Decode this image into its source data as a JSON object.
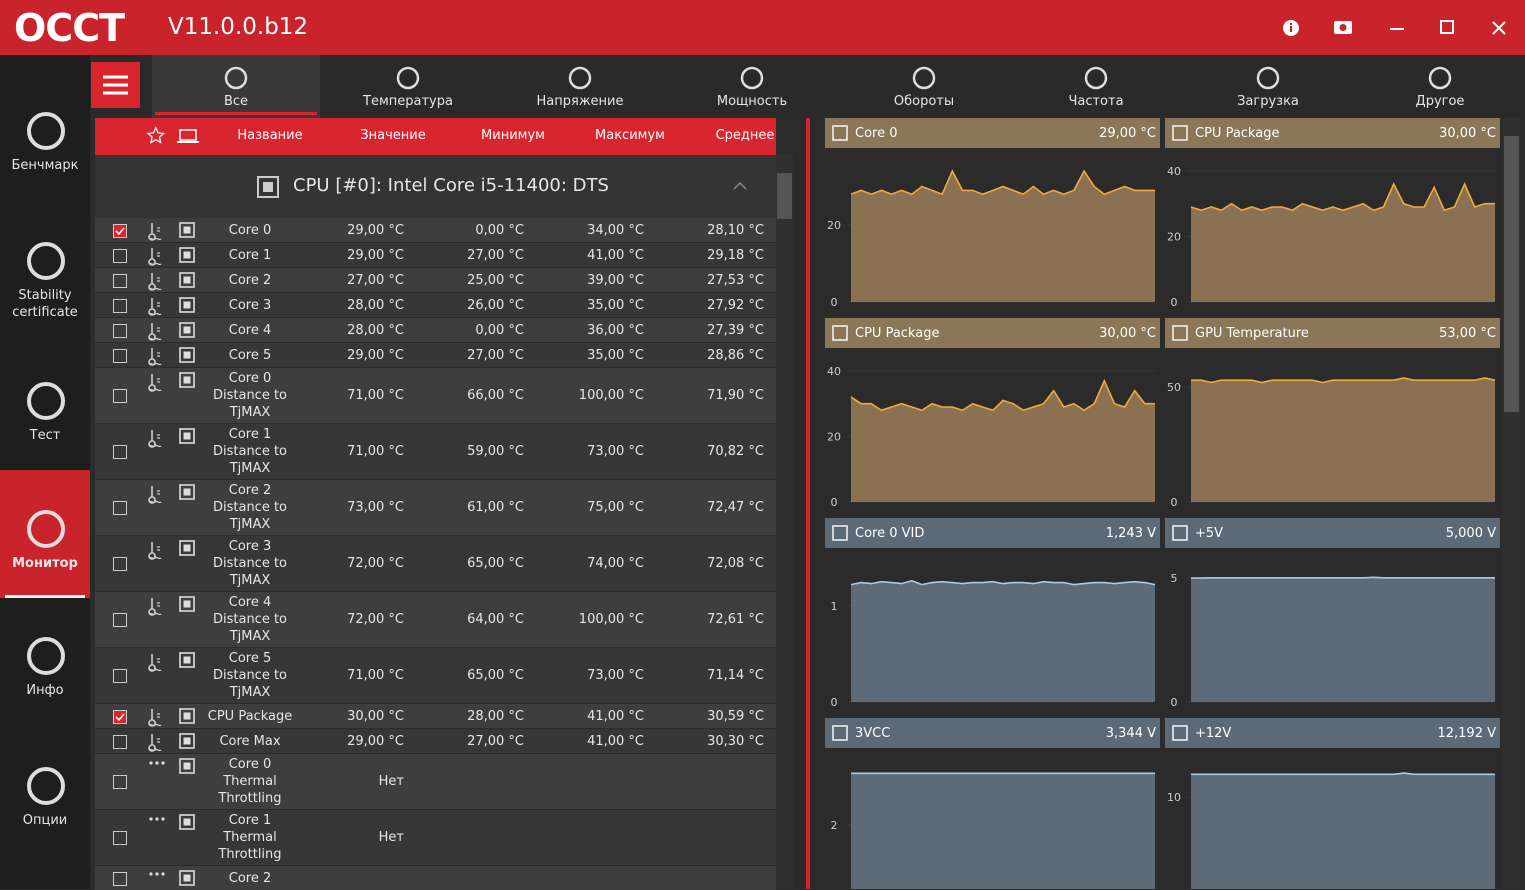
{
  "header": {
    "logo": "OCCT",
    "version": "V11.0.0.b12"
  },
  "sidebar": [
    {
      "label": "Бенчмарк"
    },
    {
      "label": "Stability\ncertificate"
    },
    {
      "label": "Тест"
    },
    {
      "label": "Монитор",
      "active": true
    },
    {
      "label": "Инфо"
    },
    {
      "label": "Опции"
    }
  ],
  "tabs": [
    {
      "label": "Все",
      "active": true
    },
    {
      "label": "Температура"
    },
    {
      "label": "Напряжение"
    },
    {
      "label": "Мощность"
    },
    {
      "label": "Обороты"
    },
    {
      "label": "Частота"
    },
    {
      "label": "Загрузка"
    },
    {
      "label": "Другое"
    }
  ],
  "table": {
    "columns": [
      "Название",
      "Значение",
      "Минимум",
      "Максимум",
      "Среднее"
    ],
    "group": "CPU [#0]: Intel Core i5-11400: DTS",
    "rows": [
      {
        "name": "Core 0",
        "value": "29,00 °C",
        "min": "0,00 °C",
        "max": "34,00 °C",
        "avg": "28,10 °C",
        "checked": true,
        "icon": "temp"
      },
      {
        "name": "Core 1",
        "value": "29,00 °C",
        "min": "27,00 °C",
        "max": "41,00 °C",
        "avg": "29,18 °C",
        "checked": false,
        "icon": "temp"
      },
      {
        "name": "Core 2",
        "value": "27,00 °C",
        "min": "25,00 °C",
        "max": "39,00 °C",
        "avg": "27,53 °C",
        "checked": false,
        "icon": "temp"
      },
      {
        "name": "Core 3",
        "value": "28,00 °C",
        "min": "26,00 °C",
        "max": "35,00 °C",
        "avg": "27,92 °C",
        "checked": false,
        "icon": "temp"
      },
      {
        "name": "Core 4",
        "value": "28,00 °C",
        "min": "0,00 °C",
        "max": "36,00 °C",
        "avg": "27,39 °C",
        "checked": false,
        "icon": "temp"
      },
      {
        "name": "Core 5",
        "value": "29,00 °C",
        "min": "27,00 °C",
        "max": "35,00 °C",
        "avg": "28,86 °C",
        "checked": false,
        "icon": "temp"
      },
      {
        "name": "Core 0\nDistance to\nTjMAX",
        "value": "71,00 °C",
        "min": "66,00 °C",
        "max": "100,00 °C",
        "avg": "71,90 °C",
        "checked": false,
        "icon": "temp"
      },
      {
        "name": "Core 1\nDistance to\nTjMAX",
        "value": "71,00 °C",
        "min": "59,00 °C",
        "max": "73,00 °C",
        "avg": "70,82 °C",
        "checked": false,
        "icon": "temp"
      },
      {
        "name": "Core 2\nDistance to\nTjMAX",
        "value": "73,00 °C",
        "min": "61,00 °C",
        "max": "75,00 °C",
        "avg": "72,47 °C",
        "checked": false,
        "icon": "temp"
      },
      {
        "name": "Core 3\nDistance to\nTjMAX",
        "value": "72,00 °C",
        "min": "65,00 °C",
        "max": "74,00 °C",
        "avg": "72,08 °C",
        "checked": false,
        "icon": "temp"
      },
      {
        "name": "Core 4\nDistance to\nTjMAX",
        "value": "72,00 °C",
        "min": "64,00 °C",
        "max": "100,00 °C",
        "avg": "72,61 °C",
        "checked": false,
        "icon": "temp"
      },
      {
        "name": "Core 5\nDistance to\nTjMAX",
        "value": "71,00 °C",
        "min": "65,00 °C",
        "max": "73,00 °C",
        "avg": "71,14 °C",
        "checked": false,
        "icon": "temp"
      },
      {
        "name": "CPU Package",
        "value": "30,00 °C",
        "min": "28,00 °C",
        "max": "41,00 °C",
        "avg": "30,59 °C",
        "checked": true,
        "icon": "temp"
      },
      {
        "name": "Core Max",
        "value": "29,00 °C",
        "min": "27,00 °C",
        "max": "41,00 °C",
        "avg": "30,30 °C",
        "checked": false,
        "icon": "temp"
      },
      {
        "name": "Core 0\nThermal\nThrottling",
        "value": "Нет",
        "checked": false,
        "icon": "other"
      },
      {
        "name": "Core 1\nThermal\nThrottling",
        "value": "Нет",
        "checked": false,
        "icon": "other"
      },
      {
        "name": "Core 2",
        "checked": false,
        "icon": "other"
      }
    ]
  },
  "chart_data": [
    {
      "type": "line",
      "title": "Core 0",
      "current": "29,00 °C",
      "color": "#f2a93b",
      "fill": "#8a7152",
      "bar": "#8b7657",
      "ylim": [
        0,
        40
      ],
      "yticks": [
        0,
        20
      ],
      "values": [
        28,
        29,
        28,
        29,
        28,
        29,
        28,
        30,
        29,
        28,
        34,
        29,
        29,
        28,
        29,
        30,
        29,
        28,
        30,
        28,
        29,
        28,
        29,
        34,
        30,
        28,
        29,
        30,
        29,
        29,
        29
      ]
    },
    {
      "type": "line",
      "title": "CPU Package",
      "current": "30,00 °C",
      "color": "#f2a93b",
      "fill": "#8a7152",
      "bar": "#8b7657",
      "ylim": [
        0,
        47
      ],
      "yticks": [
        0,
        20,
        40
      ],
      "values": [
        29,
        28,
        29,
        28,
        30,
        28,
        29,
        28,
        29,
        29,
        28,
        30,
        29,
        28,
        29,
        28,
        29,
        30,
        28,
        29,
        36,
        30,
        29,
        29,
        35,
        28,
        29,
        36,
        29,
        30,
        30
      ]
    },
    {
      "type": "line",
      "title": "CPU Package",
      "current": "30,00 °C",
      "color": "#f2a93b",
      "fill": "#8a7152",
      "bar": "#8b7657",
      "ylim": [
        0,
        47
      ],
      "yticks": [
        0,
        20,
        40
      ],
      "values": [
        32,
        30,
        30,
        28,
        29,
        30,
        29,
        28,
        30,
        29,
        29,
        28,
        30,
        29,
        28,
        31,
        30,
        28,
        29,
        30,
        34,
        29,
        30,
        28,
        30,
        37,
        30,
        29,
        34,
        30,
        30
      ]
    },
    {
      "type": "line",
      "title": "GPU Temperature",
      "current": "53,00 °C",
      "color": "#f2a93b",
      "fill": "#8a7152",
      "bar": "#8b7657",
      "ylim": [
        0,
        67
      ],
      "yticks": [
        0,
        50
      ],
      "values": [
        53,
        53,
        52,
        53,
        53,
        53,
        53,
        52,
        53,
        53,
        53,
        53,
        53,
        52,
        53,
        53,
        53,
        53,
        53,
        53,
        53,
        54,
        53,
        53,
        53,
        53,
        53,
        53,
        53,
        54,
        53
      ]
    },
    {
      "type": "line",
      "title": "Core 0 VID",
      "current": "1,243 V",
      "color": "#a9cbe2",
      "fill": "#5d6b78",
      "bar": "#5c6a78",
      "ylim": [
        0,
        1.6
      ],
      "yticks": [
        0,
        1
      ],
      "values": [
        1.22,
        1.24,
        1.23,
        1.25,
        1.24,
        1.23,
        1.26,
        1.22,
        1.24,
        1.25,
        1.24,
        1.23,
        1.24,
        1.24,
        1.25,
        1.23,
        1.24,
        1.24,
        1.23,
        1.25,
        1.24,
        1.24,
        1.22,
        1.23,
        1.24,
        1.24,
        1.23,
        1.24,
        1.25,
        1.24,
        1.22
      ]
    },
    {
      "type": "line",
      "title": "+5V",
      "current": "5,000 V",
      "color": "#a9cbe2",
      "fill": "#5d6b78",
      "bar": "#5c6a78",
      "ylim": [
        0,
        6.2
      ],
      "yticks": [
        0,
        5
      ],
      "values": [
        4.99,
        4.99,
        5,
        5,
        5,
        5,
        5,
        5,
        5,
        5,
        5,
        5,
        5,
        5,
        5,
        5,
        5,
        5,
        5.02,
        5,
        5,
        5,
        5,
        5,
        5,
        5,
        5,
        5,
        5,
        5,
        5
      ]
    },
    {
      "type": "line",
      "title": "3VCC",
      "current": "3,344 V",
      "color": "#a9cbe2",
      "fill": "#5d6b78",
      "bar": "#5c6a78",
      "ylim": [
        0,
        4
      ],
      "yticks": [
        2
      ],
      "values": [
        3.344,
        3.344,
        3.344,
        3.344,
        3.344,
        3.344,
        3.344,
        3.344,
        3.344,
        3.344,
        3.344,
        3.344,
        3.344,
        3.344,
        3.344,
        3.344,
        3.344,
        3.344,
        3.344,
        3.344,
        3.344,
        3.344,
        3.344,
        3.344,
        3.344,
        3.344,
        3.344,
        3.344,
        3.344,
        3.344,
        3.344
      ]
    },
    {
      "type": "line",
      "title": "+12V",
      "current": "12,192 V",
      "color": "#a9cbe2",
      "fill": "#5d6b78",
      "bar": "#5c6a78",
      "ylim": [
        0,
        14.7
      ],
      "yticks": [
        10
      ],
      "values": [
        12.19,
        12.19,
        12.19,
        12.19,
        12.19,
        12.19,
        12.19,
        12.19,
        12.19,
        12.19,
        12.19,
        12.19,
        12.19,
        12.19,
        12.19,
        12.19,
        12.19,
        12.19,
        12.19,
        12.19,
        12.19,
        12.3,
        12.19,
        12.19,
        12.19,
        12.19,
        12.19,
        12.19,
        12.19,
        12.19,
        12.19
      ]
    }
  ]
}
